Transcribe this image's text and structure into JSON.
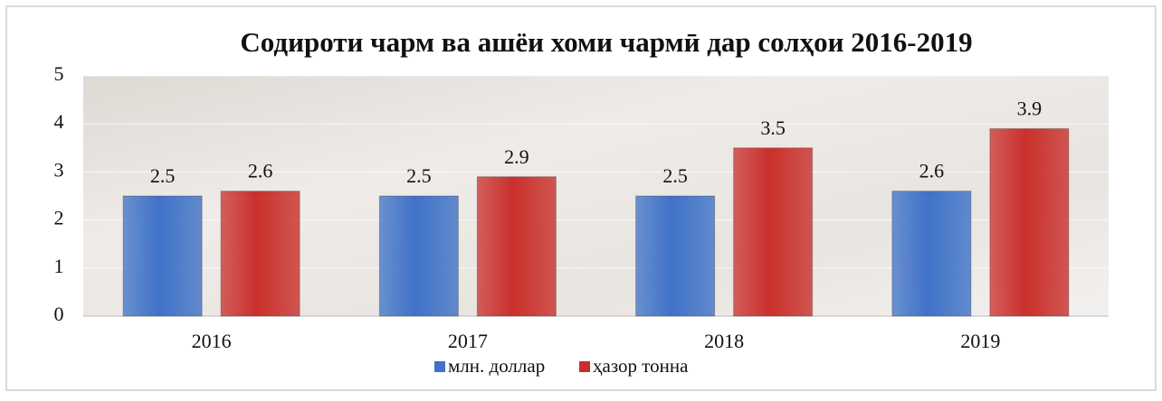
{
  "chart_data": {
    "type": "bar",
    "title": "Содироти чарм ва ашёи хоми чармӣ дар солҳои 2016-2019",
    "categories": [
      "2016",
      "2017",
      "2018",
      "2019"
    ],
    "series": [
      {
        "name": "млн. доллар",
        "color": "#3f72c8",
        "values": [
          2.5,
          2.5,
          2.5,
          2.6
        ]
      },
      {
        "name": "ҳазор тонна",
        "color": "#c9302c",
        "values": [
          2.6,
          2.9,
          3.5,
          3.9
        ]
      }
    ],
    "ylim": [
      0,
      5
    ],
    "yticks": [
      0,
      1,
      2,
      3,
      4,
      5
    ],
    "grid": true,
    "legend": "bottom"
  }
}
